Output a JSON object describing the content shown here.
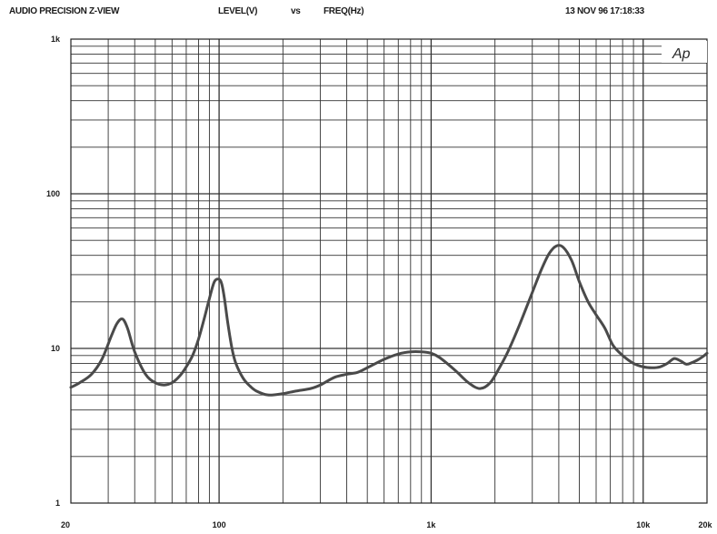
{
  "header": {
    "title": "AUDIO PRECISION Z-VIEW",
    "y_quantity": "LEVEL(V)",
    "vs": "vs",
    "x_quantity": "FREQ(Hz)",
    "timestamp": "13 NOV 96 17:18:33"
  },
  "logo": {
    "text": "Ap"
  },
  "colors": {
    "curve": "#4a4a4a",
    "grid": "#333333",
    "background": "#ffffff"
  },
  "chart_data": {
    "type": "line",
    "xscale": "log",
    "yscale": "log",
    "xlim": [
      20,
      20000
    ],
    "ylim": [
      1,
      1000
    ],
    "grid": true,
    "x_ticks": [
      {
        "value": 20,
        "label": "20"
      },
      {
        "value": 100,
        "label": "100"
      },
      {
        "value": 1000,
        "label": "1k"
      },
      {
        "value": 10000,
        "label": "10k"
      },
      {
        "value": 20000,
        "label": "20k"
      }
    ],
    "y_ticks": [
      {
        "value": 1,
        "label": "1"
      },
      {
        "value": 10,
        "label": "10"
      },
      {
        "value": 100,
        "label": "100"
      },
      {
        "value": 1000,
        "label": "1k"
      }
    ],
    "series": [
      {
        "x": [
          20,
          22,
          25,
          28,
          31,
          33,
          35,
          37,
          40,
          45,
          50,
          55,
          60,
          65,
          70,
          75,
          80,
          85,
          90,
          95,
          100,
          103,
          106,
          110,
          115,
          120,
          130,
          140,
          150,
          170,
          200,
          230,
          270,
          300,
          350,
          400,
          450,
          500,
          600,
          700,
          800,
          900,
          1000,
          1100,
          1300,
          1500,
          1700,
          1900,
          2100,
          2300,
          2600,
          3000,
          3300,
          3600,
          3900,
          4200,
          4600,
          5000,
          5500,
          6000,
          6600,
          7200,
          8000,
          9000,
          10000,
          11000,
          12000,
          13000,
          14000,
          15000,
          16000,
          17000,
          18000,
          19000,
          20000
        ],
        "y": [
          5.6,
          6.0,
          6.8,
          8.5,
          12.0,
          14.5,
          15.5,
          13.5,
          9.5,
          6.8,
          6.0,
          5.8,
          6.0,
          6.6,
          7.6,
          9.0,
          11.5,
          15.5,
          21.0,
          27.0,
          28.0,
          26.0,
          21.0,
          14.5,
          10.0,
          8.0,
          6.4,
          5.7,
          5.3,
          5.0,
          5.1,
          5.3,
          5.5,
          5.8,
          6.5,
          6.8,
          7.0,
          7.5,
          8.5,
          9.2,
          9.5,
          9.5,
          9.3,
          8.7,
          7.2,
          6.0,
          5.5,
          6.0,
          7.5,
          9.5,
          14.0,
          23.0,
          32.0,
          41.0,
          46.0,
          45.0,
          37.0,
          27.0,
          20.0,
          16.5,
          13.5,
          10.5,
          9.0,
          8.0,
          7.6,
          7.5,
          7.6,
          8.0,
          8.6,
          8.3,
          7.9,
          8.1,
          8.4,
          8.8,
          9.3
        ]
      }
    ]
  }
}
